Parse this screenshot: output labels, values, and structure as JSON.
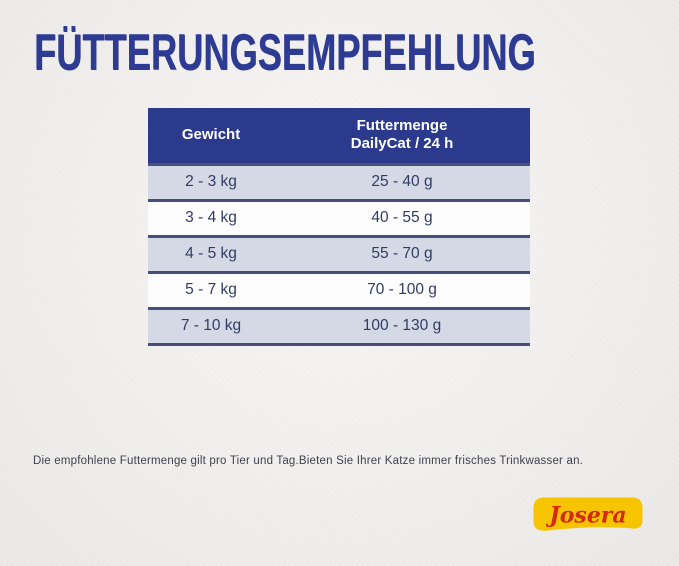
{
  "title": "FÜTTERUNGSEMPFEHLUNG",
  "table": {
    "headers": {
      "weight": "Gewicht",
      "amount_line1": "Futtermenge",
      "amount_line2": "DailyCat / 24 h"
    },
    "rows": [
      {
        "weight": "2 - 3 kg",
        "amount": "25 - 40 g"
      },
      {
        "weight": "3 - 4 kg",
        "amount": "40 - 55 g"
      },
      {
        "weight": "4 - 5 kg",
        "amount": "55 - 70 g"
      },
      {
        "weight": "5 - 7 kg",
        "amount": "70 - 100 g"
      },
      {
        "weight": "7 - 10 kg",
        "amount": "100 - 130 g"
      }
    ]
  },
  "footnote": "Die empfohlene Futtermenge gilt pro Tier und Tag.Bieten Sie Ihrer Katze immer frisches Trinkwasser an.",
  "logo": {
    "brand": "Josera"
  },
  "colors": {
    "title_blue": "#2e3b92",
    "header_bg": "#2b3a8c",
    "header_text": "#ffffff",
    "row_alt_bg": "#d5d8e5",
    "row_bg": "#fdfdfd",
    "row_text": "#303c64",
    "separator": "#46507a",
    "page_bg": "#f1efed",
    "footnote_text": "#3d424c",
    "logo_yellow": "#f6c400",
    "logo_red": "#d52812"
  }
}
